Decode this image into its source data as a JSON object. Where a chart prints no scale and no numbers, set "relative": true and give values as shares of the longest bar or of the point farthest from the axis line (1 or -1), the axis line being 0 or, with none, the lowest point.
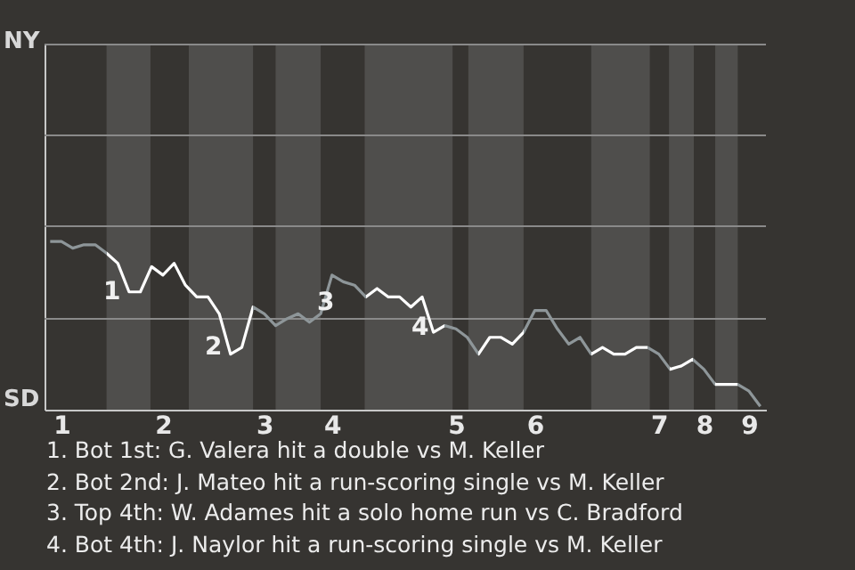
{
  "chart_data": {
    "type": "line",
    "relative": true,
    "categories": [
      null,
      "1",
      null,
      null,
      null,
      null,
      null,
      null,
      null,
      null,
      "2",
      null,
      null,
      null,
      null,
      null,
      null,
      null,
      null,
      "3",
      null,
      null,
      null,
      null,
      null,
      "4",
      null,
      null,
      null,
      null,
      null,
      null,
      null,
      null,
      null,
      null,
      "5",
      null,
      null,
      null,
      null,
      null,
      null,
      "6",
      null,
      null,
      null,
      null,
      null,
      null,
      null,
      null,
      null,
      null,
      "7",
      null,
      null,
      null,
      "8",
      null,
      null,
      null,
      "9",
      null
    ],
    "series": [
      {
        "color": "#ffffff",
        "values": [
          1,
          1,
          0.96,
          0.98,
          0.98,
          0.93,
          0.87,
          0.7,
          0.7,
          0.85,
          0.8,
          0.87,
          0.74,
          0.67,
          0.67,
          0.57,
          0.33,
          0.37,
          0.61,
          0.57,
          0.5,
          0.54,
          0.57,
          0.52,
          0.57,
          0.8,
          0.76,
          0.74,
          0.67,
          0.72,
          0.67,
          0.67,
          0.61,
          0.67,
          0.46,
          0.5,
          0.48,
          0.43,
          0.33,
          0.43,
          0.43,
          0.39,
          0.46,
          0.59,
          0.59,
          0.48,
          0.39,
          0.43,
          0.33,
          0.37,
          0.33,
          0.33,
          0.37,
          0.37,
          0.33,
          0.24,
          0.26,
          0.3,
          0.24,
          0.15,
          0.15,
          0.15,
          0.11,
          0.02
        ],
        "colors": [
          "#8e9699",
          "#8e9699",
          "#8e9699",
          "#8e9699",
          "#8e9699",
          null,
          null,
          null,
          null,
          null,
          null,
          null,
          null,
          null,
          null,
          null,
          null,
          null,
          "#8e9699",
          "#8e9699",
          "#8e9699",
          "#8e9699",
          "#8e9699",
          "#8e9699",
          "#8e9699",
          "#8e9699",
          "#8e9699",
          "#8e9699",
          null,
          null,
          null,
          null,
          null,
          null,
          null,
          "#8e9699",
          "#8e9699",
          "#8e9699",
          null,
          null,
          null,
          null,
          "#8e9699",
          "#8e9699",
          "#8e9699",
          "#8e9699",
          "#8e9699",
          "#8e9699",
          null,
          null,
          null,
          null,
          null,
          "#8e9699",
          "#8e9699",
          null,
          null,
          "#8e9699",
          "#8e9699",
          null,
          null,
          "#8e9699",
          "#8e9699",
          "#8e9699"
        ]
      }
    ],
    "ref_lines": [
      {
        "axis": "y",
        "value": 0.54,
        "color": "#8a8a8a"
      },
      {
        "axis": "y",
        "value": 1.09,
        "color": "#8a8a8a"
      },
      {
        "axis": "y",
        "value": 1.63,
        "color": "#8a8a8a"
      },
      {
        "axis": "y",
        "value": 2.17,
        "color": "#8a8a8a"
      }
    ],
    "annotations": [
      "NY",
      "SD",
      "1",
      "2",
      "3",
      "4",
      "1. Bot 1st: G. Valera hit a double vs M. Keller",
      "2. Bot 2nd: J. Mateo hit a run-scoring single vs M. Keller",
      "3. Top 4th: W. Adames hit a solo home run vs C. Bradford",
      "4. Bot 4th: J. Naylor hit a run-scoring single vs M. Keller"
    ]
  }
}
